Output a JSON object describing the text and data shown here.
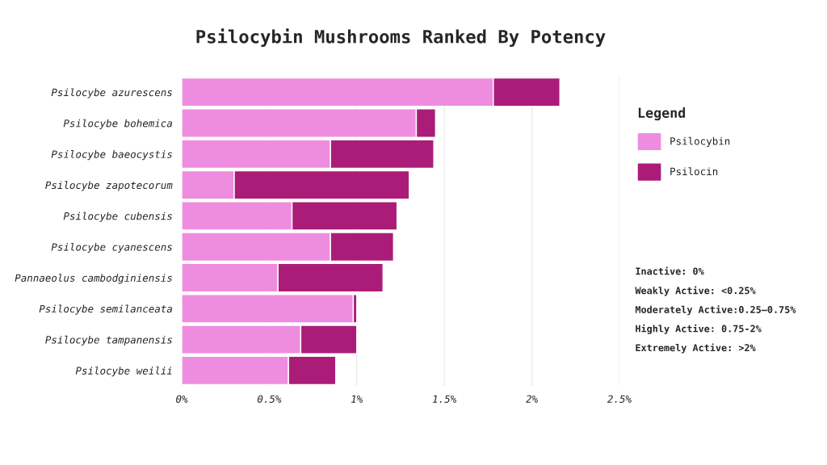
{
  "chart_data": {
    "type": "bar",
    "orientation": "horizontal",
    "stacked": true,
    "title": "Psilocybin Mushrooms Ranked By Potency",
    "categories": [
      "Psilocybe azurescens",
      "Psilocybe bohemica",
      "Psilocybe baeocystis",
      "Psilocybe zapotecorum",
      "Psilocybe cubensis",
      "Psilocybe cyanescens",
      "Pannaeolus cambodginiensis",
      "Psilocybe semilanceata",
      "Psilocybe tampanensis",
      "Psilocybe weilii"
    ],
    "series": [
      {
        "name": "Psilocybin",
        "color": "#ee8ddf",
        "values": [
          1.78,
          1.34,
          0.85,
          0.3,
          0.63,
          0.85,
          0.55,
          0.98,
          0.68,
          0.61
        ]
      },
      {
        "name": "Psilocin",
        "color": "#ab1c78",
        "values": [
          0.38,
          0.11,
          0.59,
          1.0,
          0.6,
          0.36,
          0.6,
          0.02,
          0.32,
          0.27
        ]
      }
    ],
    "xlim": [
      0,
      2.5
    ],
    "xticks": [
      {
        "value": 0,
        "label": "0%"
      },
      {
        "value": 0.5,
        "label": "0.5%"
      },
      {
        "value": 1,
        "label": "1%"
      },
      {
        "value": 1.5,
        "label": "1.5%"
      },
      {
        "value": 2,
        "label": "2%"
      },
      {
        "value": 2.5,
        "label": "2.5%"
      }
    ],
    "grid": "x",
    "legend": "right",
    "legend_title": "Legend",
    "annotations": [
      "Inactive: 0%",
      "Weakly Active: <0.25%",
      "Moderately Active:0.25–0.75%",
      "Highly Active: 0.75-2%",
      "Extremely Active: >2%"
    ]
  }
}
